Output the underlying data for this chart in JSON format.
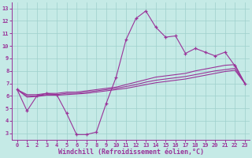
{
  "background_color": "#c5eae6",
  "grid_color": "#9ed0cc",
  "line_color": "#993399",
  "xlabel": "Windchill (Refroidissement éolien,°C)",
  "xlim": [
    -0.5,
    23.5
  ],
  "ylim": [
    2.5,
    13.5
  ],
  "xticks": [
    0,
    1,
    2,
    3,
    4,
    5,
    6,
    7,
    8,
    9,
    10,
    11,
    12,
    13,
    14,
    15,
    16,
    17,
    18,
    19,
    20,
    21,
    22,
    23
  ],
  "yticks": [
    3,
    4,
    5,
    6,
    7,
    8,
    9,
    10,
    11,
    12,
    13
  ],
  "main_series": [
    6.5,
    4.8,
    6.0,
    6.2,
    6.1,
    4.6,
    2.9,
    2.9,
    3.1,
    5.4,
    7.5,
    10.5,
    12.2,
    12.8,
    11.5,
    10.7,
    10.8,
    9.4,
    9.8,
    9.5,
    9.2,
    9.5,
    8.4,
    7.0
  ],
  "smooth1": [
    6.5,
    6.1,
    6.1,
    6.2,
    6.2,
    6.3,
    6.3,
    6.4,
    6.5,
    6.6,
    6.7,
    6.9,
    7.1,
    7.3,
    7.5,
    7.6,
    7.7,
    7.8,
    8.0,
    8.15,
    8.3,
    8.45,
    8.5,
    7.0
  ],
  "smooth2": [
    6.5,
    6.0,
    6.0,
    6.1,
    6.1,
    6.2,
    6.2,
    6.3,
    6.4,
    6.5,
    6.6,
    6.75,
    6.9,
    7.1,
    7.25,
    7.35,
    7.45,
    7.55,
    7.7,
    7.85,
    8.0,
    8.1,
    8.2,
    7.0
  ],
  "smooth3": [
    6.5,
    5.9,
    5.95,
    6.05,
    6.05,
    6.1,
    6.15,
    6.2,
    6.3,
    6.4,
    6.5,
    6.6,
    6.75,
    6.9,
    7.05,
    7.15,
    7.25,
    7.35,
    7.5,
    7.65,
    7.8,
    7.95,
    8.05,
    7.0
  ]
}
